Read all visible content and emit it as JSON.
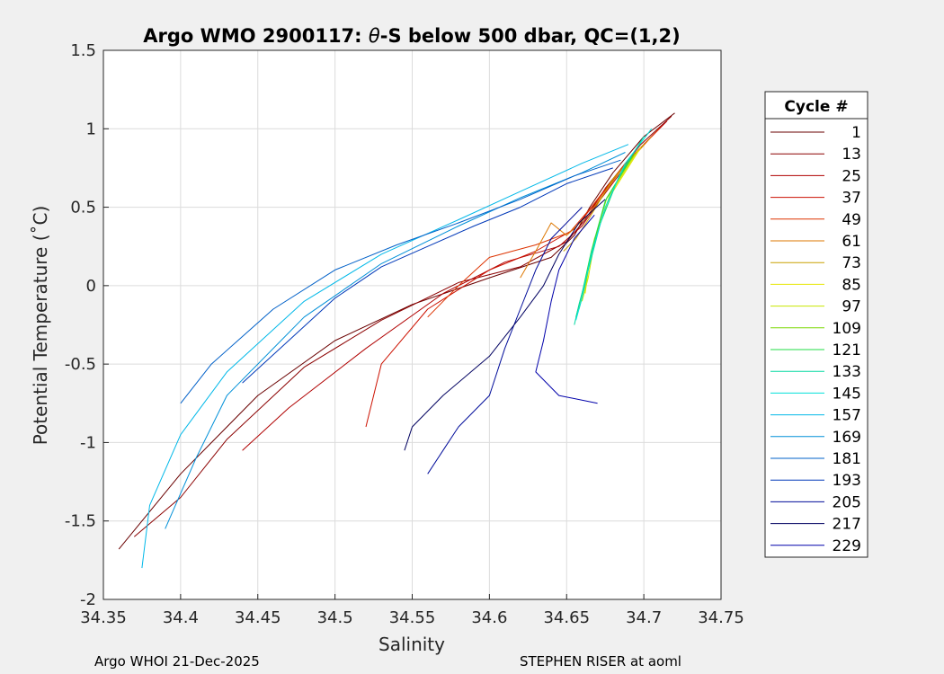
{
  "chart_data": {
    "type": "line",
    "title": "Argo WMO 2900117: θ-S below 500 dbar,  QC=(1,2)",
    "title_prefix": "Argo WMO 2900117: ",
    "title_symbol": "θ",
    "title_suffix": "-S below 500 dbar,  QC=(1,2)",
    "xlabel": "Salinity",
    "ylabel": "Potential Temperature (˚C)",
    "xlim": [
      34.35,
      34.75
    ],
    "ylim": [
      -2,
      1.5
    ],
    "xticks": [
      "34.35",
      "34.4",
      "34.45",
      "34.5",
      "34.55",
      "34.6",
      "34.65",
      "34.7",
      "34.75"
    ],
    "yticks": [
      "1.5",
      "1",
      "0.5",
      "0",
      "-0.5",
      "-1",
      "-1.5",
      "-2"
    ],
    "grid": true,
    "legend_title": "Cycle #",
    "legend_position": "right",
    "series": [
      {
        "name": "1",
        "color": "#6a0000",
        "points": [
          [
            34.72,
            1.1
          ],
          [
            34.7,
            0.95
          ],
          [
            34.68,
            0.72
          ],
          [
            34.665,
            0.5
          ],
          [
            34.655,
            0.32
          ],
          [
            34.64,
            0.18
          ],
          [
            34.6,
            0.05
          ],
          [
            34.55,
            -0.12
          ],
          [
            34.5,
            -0.35
          ],
          [
            34.45,
            -0.7
          ],
          [
            34.4,
            -1.2
          ],
          [
            34.36,
            -1.68
          ]
        ]
      },
      {
        "name": "13",
        "color": "#8b0000",
        "points": [
          [
            34.718,
            1.08
          ],
          [
            34.698,
            0.9
          ],
          [
            34.675,
            0.62
          ],
          [
            34.662,
            0.42
          ],
          [
            34.65,
            0.28
          ],
          [
            34.62,
            0.12
          ],
          [
            34.58,
            0.02
          ],
          [
            34.53,
            -0.22
          ],
          [
            34.48,
            -0.52
          ],
          [
            34.43,
            -0.98
          ],
          [
            34.4,
            -1.35
          ],
          [
            34.37,
            -1.6
          ]
        ]
      },
      {
        "name": "25",
        "color": "#b00000",
        "points": [
          [
            34.715,
            1.05
          ],
          [
            34.695,
            0.85
          ],
          [
            34.672,
            0.55
          ],
          [
            34.66,
            0.38
          ],
          [
            34.645,
            0.25
          ],
          [
            34.61,
            0.15
          ],
          [
            34.57,
            -0.05
          ],
          [
            34.52,
            -0.4
          ],
          [
            34.47,
            -0.78
          ],
          [
            34.44,
            -1.05
          ]
        ]
      },
      {
        "name": "37",
        "color": "#cc1100",
        "points": [
          [
            34.712,
            1.02
          ],
          [
            34.69,
            0.8
          ],
          [
            34.668,
            0.52
          ],
          [
            34.655,
            0.36
          ],
          [
            34.63,
            0.22
          ],
          [
            34.6,
            0.1
          ],
          [
            34.56,
            -0.15
          ],
          [
            34.53,
            -0.5
          ],
          [
            34.52,
            -0.9
          ]
        ]
      },
      {
        "name": "49",
        "color": "#dd3300",
        "points": [
          [
            34.71,
            1.0
          ],
          [
            34.688,
            0.78
          ],
          [
            34.666,
            0.5
          ],
          [
            34.652,
            0.34
          ],
          [
            34.63,
            0.26
          ],
          [
            34.6,
            0.18
          ],
          [
            34.58,
            0.0
          ],
          [
            34.56,
            -0.2
          ]
        ]
      },
      {
        "name": "61",
        "color": "#dd7700",
        "points": [
          [
            34.705,
            0.95
          ],
          [
            34.684,
            0.72
          ],
          [
            34.664,
            0.45
          ],
          [
            34.65,
            0.32
          ],
          [
            34.64,
            0.4
          ],
          [
            34.63,
            0.22
          ],
          [
            34.62,
            0.05
          ]
        ]
      },
      {
        "name": "73",
        "color": "#c9a000",
        "points": [
          [
            34.7,
            0.9
          ],
          [
            34.68,
            0.68
          ],
          [
            34.664,
            0.42
          ],
          [
            34.656,
            0.3
          ],
          [
            34.648,
            0.22
          ]
        ]
      },
      {
        "name": "85",
        "color": "#e6e600",
        "points": [
          [
            34.698,
            0.88
          ],
          [
            34.68,
            0.6
          ],
          [
            34.668,
            0.3
          ],
          [
            34.664,
            0.1
          ],
          [
            34.662,
            -0.05
          ]
        ]
      },
      {
        "name": "97",
        "color": "#c8e600",
        "points": [
          [
            34.696,
            0.86
          ],
          [
            34.678,
            0.58
          ],
          [
            34.668,
            0.28
          ],
          [
            34.664,
            0.05
          ],
          [
            34.66,
            -0.1
          ]
        ]
      },
      {
        "name": "109",
        "color": "#7ad800",
        "points": [
          [
            34.694,
            0.84
          ],
          [
            34.676,
            0.56
          ],
          [
            34.667,
            0.25
          ],
          [
            34.662,
            0.0
          ],
          [
            34.658,
            -0.15
          ]
        ]
      },
      {
        "name": "121",
        "color": "#22dd44",
        "points": [
          [
            34.692,
            0.82
          ],
          [
            34.675,
            0.54
          ],
          [
            34.666,
            0.22
          ],
          [
            34.66,
            -0.05
          ],
          [
            34.656,
            -0.2
          ]
        ]
      },
      {
        "name": "133",
        "color": "#00d8a0",
        "points": [
          [
            34.7,
            0.95
          ],
          [
            34.684,
            0.7
          ],
          [
            34.672,
            0.4
          ],
          [
            34.664,
            0.1
          ],
          [
            34.658,
            -0.12
          ],
          [
            34.655,
            -0.25
          ]
        ]
      },
      {
        "name": "145",
        "color": "#00e0d8",
        "points": [
          [
            34.705,
            1.0
          ],
          [
            34.688,
            0.78
          ],
          [
            34.675,
            0.5
          ],
          [
            34.666,
            0.2
          ],
          [
            34.66,
            -0.08
          ],
          [
            34.656,
            -0.22
          ]
        ]
      },
      {
        "name": "157",
        "color": "#00b8e8",
        "points": [
          [
            34.69,
            0.9
          ],
          [
            34.66,
            0.78
          ],
          [
            34.62,
            0.6
          ],
          [
            34.58,
            0.42
          ],
          [
            34.53,
            0.2
          ],
          [
            34.48,
            -0.1
          ],
          [
            34.43,
            -0.55
          ],
          [
            34.4,
            -0.95
          ],
          [
            34.38,
            -1.4
          ],
          [
            34.375,
            -1.8
          ]
        ]
      },
      {
        "name": "169",
        "color": "#0090d8",
        "points": [
          [
            34.688,
            0.85
          ],
          [
            34.66,
            0.72
          ],
          [
            34.62,
            0.56
          ],
          [
            34.58,
            0.38
          ],
          [
            34.53,
            0.14
          ],
          [
            34.48,
            -0.2
          ],
          [
            34.43,
            -0.7
          ],
          [
            34.41,
            -1.1
          ],
          [
            34.39,
            -1.55
          ]
        ]
      },
      {
        "name": "181",
        "color": "#0060c8",
        "points": [
          [
            34.685,
            0.8
          ],
          [
            34.655,
            0.7
          ],
          [
            34.62,
            0.55
          ],
          [
            34.58,
            0.4
          ],
          [
            34.54,
            0.26
          ],
          [
            34.5,
            0.1
          ],
          [
            34.46,
            -0.15
          ],
          [
            34.42,
            -0.5
          ],
          [
            34.4,
            -0.75
          ]
        ]
      },
      {
        "name": "193",
        "color": "#0038b8",
        "points": [
          [
            34.68,
            0.75
          ],
          [
            34.65,
            0.65
          ],
          [
            34.62,
            0.5
          ],
          [
            34.59,
            0.38
          ],
          [
            34.56,
            0.25
          ],
          [
            34.53,
            0.12
          ],
          [
            34.5,
            -0.08
          ],
          [
            34.47,
            -0.35
          ],
          [
            34.44,
            -0.62
          ]
        ]
      },
      {
        "name": "205",
        "color": "#000c9a",
        "points": [
          [
            34.66,
            0.5
          ],
          [
            34.64,
            0.3
          ],
          [
            34.63,
            0.1
          ],
          [
            34.62,
            -0.15
          ],
          [
            34.61,
            -0.4
          ],
          [
            34.6,
            -0.7
          ],
          [
            34.58,
            -0.9
          ],
          [
            34.57,
            -1.05
          ],
          [
            34.56,
            -1.2
          ]
        ]
      },
      {
        "name": "217",
        "color": "#000060",
        "points": [
          [
            34.675,
            0.55
          ],
          [
            34.658,
            0.4
          ],
          [
            34.645,
            0.2
          ],
          [
            34.635,
            0.0
          ],
          [
            34.62,
            -0.2
          ],
          [
            34.6,
            -0.45
          ],
          [
            34.57,
            -0.7
          ],
          [
            34.55,
            -0.9
          ],
          [
            34.545,
            -1.05
          ]
        ]
      },
      {
        "name": "229",
        "color": "#0000aa",
        "points": [
          [
            34.668,
            0.45
          ],
          [
            34.655,
            0.3
          ],
          [
            34.645,
            0.1
          ],
          [
            34.64,
            -0.1
          ],
          [
            34.635,
            -0.35
          ],
          [
            34.63,
            -0.55
          ],
          [
            34.645,
            -0.7
          ],
          [
            34.67,
            -0.75
          ]
        ]
      }
    ]
  },
  "footer": {
    "left": "Argo WHOI 21-Dec-2025",
    "right": "STEPHEN RISER at aoml"
  }
}
